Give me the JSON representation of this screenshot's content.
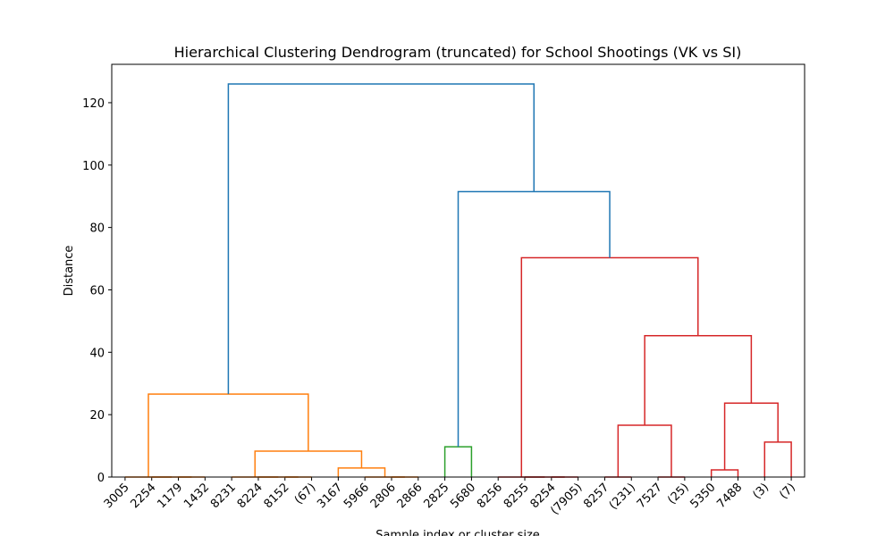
{
  "chart_data": {
    "type": "dendrogram",
    "title": "Hierarchical Clustering Dendrogram (truncated) for School Shootings (VK vs SI)",
    "xlabel": "Sample index or cluster size",
    "ylabel": "Distance",
    "categories": [
      "3005",
      "2254",
      "1179",
      "1432",
      "8231",
      "8224",
      "8152",
      "(67)",
      "3167",
      "5966",
      "2806",
      "2866",
      "2825",
      "5680",
      "8256",
      "8255",
      "8254",
      "(7905)",
      "8257",
      "(231)",
      "7527",
      "(25)",
      "5350",
      "7488",
      "(3)",
      "(7)"
    ],
    "links": [
      {
        "left": 2,
        "right": 3,
        "height": 0,
        "color": "#ff7f0e"
      },
      {
        "left": 1,
        "right": 26,
        "height": 0,
        "color": "#ff7f0e"
      },
      {
        "left": 0,
        "right": 27,
        "height": 0,
        "color": "#ff7f0e"
      },
      {
        "left": 6,
        "right": 7,
        "height": 0,
        "color": "#ff7f0e"
      },
      {
        "left": 5,
        "right": 29,
        "height": 0,
        "color": "#ff7f0e"
      },
      {
        "left": 4,
        "right": 30,
        "height": 0,
        "color": "#ff7f0e"
      },
      {
        "left": 10,
        "right": 11,
        "height": 0,
        "color": "#ff7f0e"
      },
      {
        "left": 9,
        "right": 32,
        "height": 0,
        "color": "#ff7f0e"
      },
      {
        "left": 8,
        "right": 33,
        "height": 2.9,
        "color": "#ff7f0e"
      },
      {
        "left": 31,
        "right": 34,
        "height": 8.3,
        "color": "#ff7f0e"
      },
      {
        "left": 28,
        "right": 35,
        "height": 26.6,
        "color": "#ff7f0e"
      },
      {
        "left": 12,
        "right": 13,
        "height": 9.7,
        "color": "#2ca02c"
      },
      {
        "left": 16,
        "right": 17,
        "height": 0,
        "color": "#d62728"
      },
      {
        "left": 15,
        "right": 38,
        "height": 0,
        "color": "#d62728"
      },
      {
        "left": 14,
        "right": 39,
        "height": 0,
        "color": "#d62728"
      },
      {
        "left": 18,
        "right": 19,
        "height": 0,
        "color": "#d62728"
      },
      {
        "left": 20,
        "right": 21,
        "height": 0,
        "color": "#d62728"
      },
      {
        "left": 41,
        "right": 42,
        "height": 16.6,
        "color": "#d62728"
      },
      {
        "left": 22,
        "right": 23,
        "height": 2.3,
        "color": "#d62728"
      },
      {
        "left": 24,
        "right": 25,
        "height": 11.2,
        "color": "#d62728"
      },
      {
        "left": 44,
        "right": 45,
        "height": 23.7,
        "color": "#d62728"
      },
      {
        "left": 43,
        "right": 46,
        "height": 45.3,
        "color": "#d62728"
      },
      {
        "left": 40,
        "right": 47,
        "height": 70.3,
        "color": "#d62728"
      },
      {
        "left": 37,
        "right": 48,
        "height": 91.5,
        "color": "#1f77b4"
      },
      {
        "left": 36,
        "right": 49,
        "height": 126,
        "color": "#1f77b4"
      }
    ],
    "ylim": [
      0,
      132.3
    ],
    "yticks": [
      0,
      20,
      40,
      60,
      80,
      100,
      120
    ]
  }
}
